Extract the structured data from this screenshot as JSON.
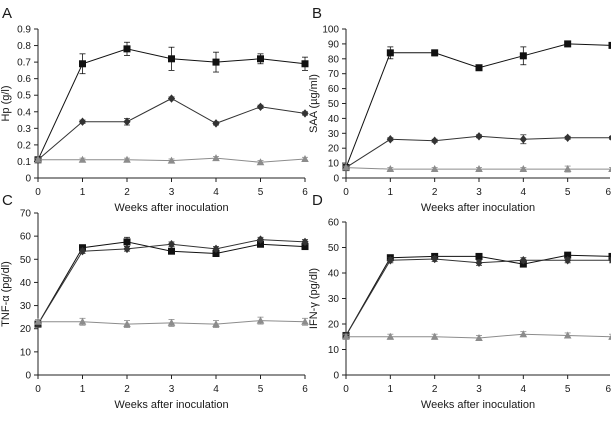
{
  "chart_data": [
    {
      "type": "line",
      "panel": "A",
      "title": "",
      "xlabel": "Weeks after inoculation",
      "ylabel": "Hp (g/l)",
      "x": [
        0,
        1,
        2,
        3,
        4,
        5,
        6
      ],
      "xlim": [
        0,
        6
      ],
      "ylim": [
        0,
        0.9
      ],
      "xticks": [
        0,
        1,
        2,
        3,
        4,
        5,
        6
      ],
      "yticks": [
        0,
        0.1,
        0.2,
        0.3,
        0.4,
        0.5,
        0.6,
        0.7,
        0.8,
        0.9
      ],
      "grid": false,
      "series": [
        {
          "name": "square",
          "marker": "square",
          "color": "#111111",
          "values": [
            0.11,
            0.69,
            0.78,
            0.72,
            0.7,
            0.72,
            0.69
          ],
          "errors": [
            0.01,
            0.06,
            0.04,
            0.07,
            0.06,
            0.03,
            0.04
          ]
        },
        {
          "name": "diamond",
          "marker": "diamond",
          "color": "#333333",
          "values": [
            0.11,
            0.34,
            0.34,
            0.48,
            0.33,
            0.43,
            0.39
          ],
          "errors": [
            0.01,
            0.01,
            0.02,
            0.01,
            0.01,
            0.01,
            0.01
          ]
        },
        {
          "name": "triangle",
          "marker": "triangle",
          "color": "#8c8c8c",
          "values": [
            0.11,
            0.11,
            0.11,
            0.105,
            0.12,
            0.095,
            0.115
          ],
          "errors": [
            0.01,
            0.01,
            0.01,
            0.01,
            0.01,
            0.01,
            0.01
          ]
        }
      ]
    },
    {
      "type": "line",
      "panel": "B",
      "title": "",
      "xlabel": "Weeks after inoculation",
      "ylabel": "SAA (µg/ml)",
      "x": [
        0,
        1,
        2,
        3,
        4,
        5,
        6
      ],
      "xlim": [
        0,
        6
      ],
      "ylim": [
        0,
        100
      ],
      "xticks": [
        0,
        1,
        2,
        3,
        4,
        5,
        6
      ],
      "yticks": [
        0,
        10,
        20,
        30,
        40,
        50,
        60,
        70,
        80,
        90,
        100
      ],
      "grid": false,
      "series": [
        {
          "name": "square",
          "marker": "square",
          "color": "#111111",
          "values": [
            7,
            84,
            84,
            74,
            82,
            90,
            89
          ],
          "errors": [
            1,
            4,
            2,
            1,
            6,
            1,
            1
          ]
        },
        {
          "name": "diamond",
          "marker": "diamond",
          "color": "#333333",
          "values": [
            7,
            26,
            25,
            28,
            26,
            27,
            27
          ],
          "errors": [
            1,
            1,
            1,
            1,
            3,
            1,
            1
          ]
        },
        {
          "name": "triangle",
          "marker": "triangle",
          "color": "#8c8c8c",
          "values": [
            7,
            6,
            6,
            6,
            6,
            6,
            6
          ],
          "errors": [
            1,
            1,
            1,
            1,
            1,
            2,
            1
          ]
        }
      ]
    },
    {
      "type": "line",
      "panel": "C",
      "title": "",
      "xlabel": "Weeks after inoculation",
      "ylabel": "TNF-α (pg/dl)",
      "x": [
        0,
        1,
        2,
        3,
        4,
        5,
        6
      ],
      "xlim": [
        0,
        6
      ],
      "ylim": [
        0,
        70
      ],
      "xticks": [
        0,
        1,
        2,
        3,
        4,
        5,
        6
      ],
      "yticks": [
        0,
        10,
        20,
        30,
        40,
        50,
        60,
        70
      ],
      "grid": false,
      "series": [
        {
          "name": "square",
          "marker": "square",
          "color": "#111111",
          "values": [
            22,
            55,
            57.5,
            53.5,
            52.5,
            56.5,
            55.5
          ],
          "errors": [
            1,
            1,
            2,
            1,
            1,
            1,
            1
          ]
        },
        {
          "name": "diamond",
          "marker": "diamond",
          "color": "#333333",
          "values": [
            22,
            53.5,
            54.5,
            56.5,
            54.5,
            58.5,
            57.5
          ],
          "errors": [
            1,
            1,
            1,
            1,
            1,
            1,
            1
          ]
        },
        {
          "name": "triangle",
          "marker": "triangle",
          "color": "#8c8c8c",
          "values": [
            23,
            23,
            22,
            22.5,
            22,
            23.5,
            23
          ],
          "errors": [
            1,
            1.5,
            1.5,
            1.5,
            1.5,
            1.5,
            1.5
          ]
        }
      ]
    },
    {
      "type": "line",
      "panel": "D",
      "title": "",
      "xlabel": "Weeks after inoculation",
      "ylabel": "IFN-γ (pg/dl)",
      "x": [
        0,
        1,
        2,
        3,
        4,
        5,
        6
      ],
      "xlim": [
        0,
        6
      ],
      "ylim": [
        0,
        60
      ],
      "xticks": [
        0,
        1,
        2,
        3,
        4,
        5,
        6
      ],
      "yticks": [
        0,
        10,
        20,
        30,
        40,
        50,
        60
      ],
      "grid": false,
      "series": [
        {
          "name": "square",
          "marker": "square",
          "color": "#111111",
          "values": [
            15.5,
            46,
            46.5,
            46.5,
            43.5,
            47,
            46.5
          ],
          "errors": [
            1,
            1,
            1,
            1,
            1,
            1,
            1
          ]
        },
        {
          "name": "diamond",
          "marker": "diamond",
          "color": "#333333",
          "values": [
            15.5,
            45,
            45.5,
            44,
            45,
            45,
            45
          ],
          "errors": [
            1,
            1,
            1,
            1,
            1,
            1,
            1
          ]
        },
        {
          "name": "triangle",
          "marker": "triangle",
          "color": "#8c8c8c",
          "values": [
            15,
            15,
            15,
            14.5,
            16,
            15.5,
            15
          ],
          "errors": [
            1,
            1,
            1,
            1,
            1,
            1,
            1
          ]
        }
      ]
    }
  ]
}
